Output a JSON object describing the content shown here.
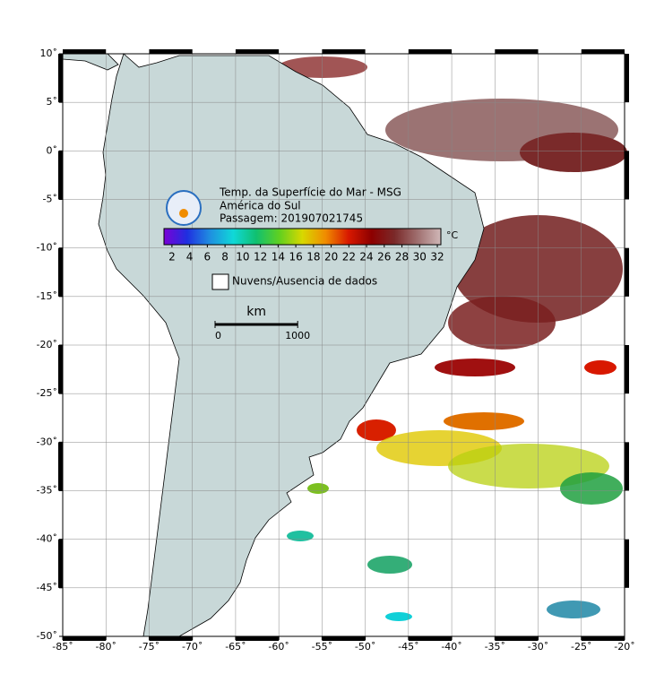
{
  "map": {
    "title": [
      "Temp. da Superfície do Mar - MSG",
      "América do Sul",
      "Passagem: 201907021745"
    ],
    "xlim": [
      -85,
      -20
    ],
    "ylim": [
      -50,
      10
    ],
    "xticks": [
      {
        "value": -85,
        "label": "-85˚"
      },
      {
        "value": -80,
        "label": "-80˚"
      },
      {
        "value": -75,
        "label": "-75˚"
      },
      {
        "value": -70,
        "label": "-70˚"
      },
      {
        "value": -65,
        "label": "-65˚"
      },
      {
        "value": -60,
        "label": "-60˚"
      },
      {
        "value": -55,
        "label": "-55˚"
      },
      {
        "value": -50,
        "label": "-50˚"
      },
      {
        "value": -45,
        "label": "-45˚"
      },
      {
        "value": -40,
        "label": "-40˚"
      },
      {
        "value": -35,
        "label": "-35˚"
      },
      {
        "value": -30,
        "label": "-30˚"
      },
      {
        "value": -25,
        "label": "-25˚"
      },
      {
        "value": -20,
        "label": "-20˚"
      }
    ],
    "yticks": [
      {
        "value": 10,
        "label": "10˚"
      },
      {
        "value": 5,
        "label": "5˚"
      },
      {
        "value": 0,
        "label": "0˚"
      },
      {
        "value": -5,
        "label": "-5˚"
      },
      {
        "value": -10,
        "label": "-10˚"
      },
      {
        "value": -15,
        "label": "-15˚"
      },
      {
        "value": -20,
        "label": "-20˚"
      },
      {
        "value": -25,
        "label": "-25˚"
      },
      {
        "value": -30,
        "label": "-30˚"
      },
      {
        "value": -35,
        "label": "-35˚"
      },
      {
        "value": -40,
        "label": "-40˚"
      },
      {
        "value": -45,
        "label": "-45˚"
      },
      {
        "value": -50,
        "label": "-50˚"
      }
    ],
    "grid": true,
    "colorbar": {
      "ticks": [
        2,
        4,
        6,
        8,
        10,
        12,
        14,
        16,
        18,
        20,
        22,
        24,
        26,
        28,
        30,
        32
      ],
      "lim": [
        1.1,
        32.4
      ],
      "unit": "°C",
      "colors": [
        "#7a00d6",
        "#1f2fe0",
        "#1f8fe0",
        "#10d8d8",
        "#10c070",
        "#60d020",
        "#d8d800",
        "#f08c00",
        "#d81800",
        "#8c0000",
        "#7a2a2a",
        "#a07070",
        "#d0b8b8"
      ]
    },
    "legend": "Nuvens/Ausencia de dados",
    "scale": {
      "unit": "km",
      "ticks": [
        0,
        1000
      ]
    }
  }
}
